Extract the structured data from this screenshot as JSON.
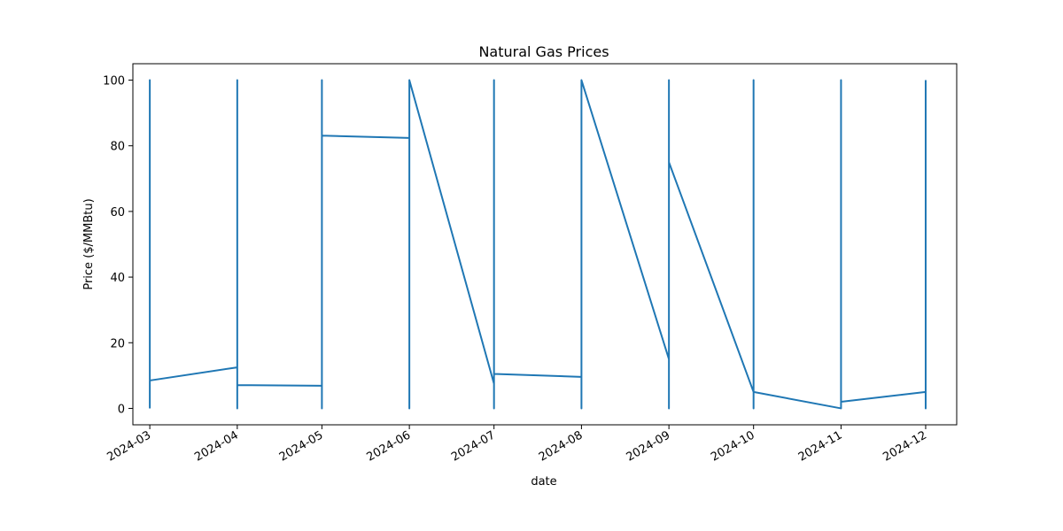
{
  "chart_data": {
    "type": "line",
    "title": "Natural Gas Prices",
    "xlabel": "date",
    "ylabel": "Price ($/MMBtu)",
    "x_ticks": [
      "2024-03",
      "2024-04",
      "2024-05",
      "2024-06",
      "2024-07",
      "2024-08",
      "2024-09",
      "2024-10",
      "2024-11",
      "2024-12"
    ],
    "y_ticks": [
      0,
      20,
      40,
      60,
      80,
      100
    ],
    "xlim": [
      "2024-02-24",
      "2024-12-12"
    ],
    "ylim": [
      -5,
      105
    ],
    "grid": false,
    "color": "#1f77b4",
    "series": [
      {
        "points": [
          [
            "2024-03-01",
            0
          ],
          [
            "2024-03-01",
            100
          ],
          [
            "2024-03-01",
            8.5
          ],
          [
            "2024-04-01",
            12.5
          ],
          [
            "2024-04-01",
            0
          ],
          [
            "2024-04-01",
            100
          ],
          [
            "2024-04-01",
            7.1
          ],
          [
            "2024-05-01",
            6.9
          ],
          [
            "2024-05-01",
            0
          ],
          [
            "2024-05-01",
            100
          ],
          [
            "2024-05-01",
            83.1
          ],
          [
            "2024-06-01",
            82.4
          ],
          [
            "2024-06-01",
            0
          ],
          [
            "2024-06-01",
            100
          ],
          [
            "2024-07-01",
            7.5
          ],
          [
            "2024-07-01",
            0
          ],
          [
            "2024-07-01",
            100
          ],
          [
            "2024-07-01",
            10.5
          ],
          [
            "2024-08-01",
            9.6
          ],
          [
            "2024-08-01",
            0
          ],
          [
            "2024-08-01",
            100
          ],
          [
            "2024-09-01",
            15
          ],
          [
            "2024-09-01",
            0
          ],
          [
            "2024-09-01",
            100
          ],
          [
            "2024-09-01",
            75
          ],
          [
            "2024-10-01",
            5
          ],
          [
            "2024-10-01",
            0
          ],
          [
            "2024-10-01",
            100
          ],
          [
            "2024-10-01",
            5
          ],
          [
            "2024-11-01",
            0
          ],
          [
            "2024-11-01",
            100
          ],
          [
            "2024-11-01",
            2
          ],
          [
            "2024-12-01",
            5
          ],
          [
            "2024-12-01",
            0
          ],
          [
            "2024-12-01",
            100
          ]
        ]
      }
    ]
  }
}
